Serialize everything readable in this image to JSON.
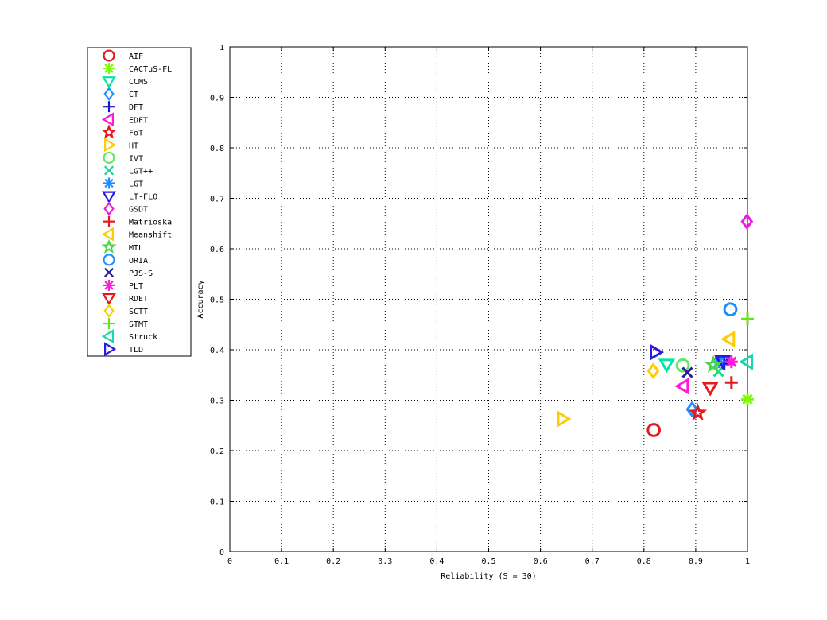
{
  "chart_data": {
    "type": "scatter",
    "xlabel": "Reliability (S = 30)",
    "ylabel": "Accuracy",
    "xlim": [
      0,
      1
    ],
    "ylim": [
      0,
      1
    ],
    "xticks": [
      "0",
      "0.1",
      "0.2",
      "0.3",
      "0.4",
      "0.5",
      "0.6",
      "0.7",
      "0.8",
      "0.9",
      "1"
    ],
    "yticks": [
      "0",
      "0.1",
      "0.2",
      "0.3",
      "0.4",
      "0.5",
      "0.6",
      "0.7",
      "0.8",
      "0.9",
      "1"
    ],
    "grid": true,
    "legend_position": "top-left, outside plot",
    "series": [
      {
        "name": "AIF",
        "marker": "circle",
        "color": "#e41a1c",
        "x": 0.819,
        "y": 0.241
      },
      {
        "name": "CACTuS-FL",
        "marker": "asterisk",
        "color": "#7cfc00",
        "x": 1.0,
        "y": 0.302
      },
      {
        "name": "CCMS",
        "marker": "triangle-down",
        "color": "#00e5a8",
        "x": 0.844,
        "y": 0.371
      },
      {
        "name": "CT",
        "marker": "diamond",
        "color": "#1e90ff",
        "x": 0.893,
        "y": 0.282
      },
      {
        "name": "DFT",
        "marker": "plus",
        "color": "#1a1acc",
        "x": 0.955,
        "y": 0.372
      },
      {
        "name": "EDFT",
        "marker": "triangle-left",
        "color": "#ff1ad8",
        "x": 0.876,
        "y": 0.328
      },
      {
        "name": "FoT",
        "marker": "pentagram",
        "color": "#e41a1c",
        "x": 0.904,
        "y": 0.275
      },
      {
        "name": "HT",
        "marker": "triangle-right",
        "color": "#ffcc00",
        "x": 0.643,
        "y": 0.263
      },
      {
        "name": "IVT",
        "marker": "circle",
        "color": "#66e666",
        "x": 0.875,
        "y": 0.369
      },
      {
        "name": "LGT++",
        "marker": "cross",
        "color": "#1ad89a",
        "x": 0.944,
        "y": 0.357
      },
      {
        "name": "LGT",
        "marker": "asterisk",
        "color": "#1a90ff",
        "x": 0.945,
        "y": 0.376
      },
      {
        "name": "LT-FLO",
        "marker": "triangle-down",
        "color": "#2a1ae6",
        "x": 0.952,
        "y": 0.378
      },
      {
        "name": "GSDT",
        "marker": "diamond",
        "color": "#ee1add",
        "x": 0.999,
        "y": 0.654
      },
      {
        "name": "Matrioska",
        "marker": "plus",
        "color": "#e41a1c",
        "x": 0.969,
        "y": 0.335
      },
      {
        "name": "Meanshift",
        "marker": "triangle-left",
        "color": "#ffcc00",
        "x": 0.965,
        "y": 0.421
      },
      {
        "name": "MIL",
        "marker": "pentagram",
        "color": "#4ad84a",
        "x": 0.934,
        "y": 0.37
      },
      {
        "name": "ORIA",
        "marker": "circle",
        "color": "#1a90ff",
        "x": 0.967,
        "y": 0.48
      },
      {
        "name": "PJS-S",
        "marker": "cross",
        "color": "#2a1a99",
        "x": 0.884,
        "y": 0.355
      },
      {
        "name": "PLT",
        "marker": "asterisk",
        "color": "#ff1ad8",
        "x": 0.969,
        "y": 0.376
      },
      {
        "name": "RDET",
        "marker": "triangle-down",
        "color": "#e41a1c",
        "x": 0.928,
        "y": 0.325
      },
      {
        "name": "SCTT",
        "marker": "diamond",
        "color": "#ffcc00",
        "x": 0.818,
        "y": 0.358
      },
      {
        "name": "STMT",
        "marker": "plus",
        "color": "#66e61a",
        "x": 1.0,
        "y": 0.461
      },
      {
        "name": "Struck",
        "marker": "triangle-left",
        "color": "#1ad8a8",
        "x": 1.0,
        "y": 0.376
      },
      {
        "name": "TLD",
        "marker": "triangle-right",
        "color": "#2a1ae6",
        "x": 0.822,
        "y": 0.395
      }
    ]
  }
}
